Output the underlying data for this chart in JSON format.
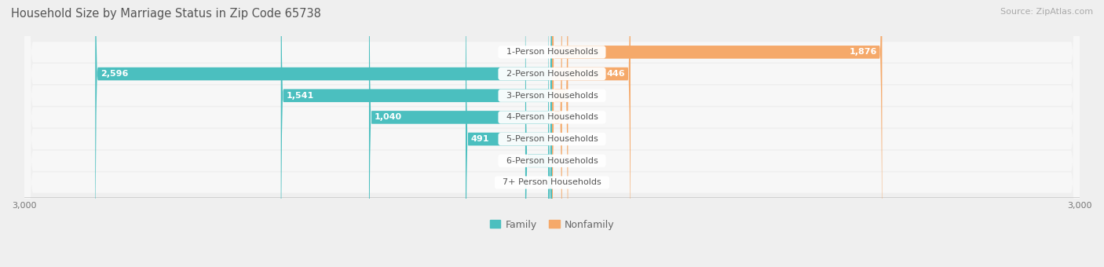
{
  "title": "Household Size by Marriage Status in Zip Code 65738",
  "source": "Source: ZipAtlas.com",
  "categories": [
    "7+ Person Households",
    "6-Person Households",
    "5-Person Households",
    "4-Person Households",
    "3-Person Households",
    "2-Person Households",
    "1-Person Households"
  ],
  "family_values": [
    22,
    152,
    491,
    1040,
    1541,
    2596,
    0
  ],
  "nonfamily_values": [
    0,
    0,
    0,
    57,
    91,
    446,
    1876
  ],
  "family_color": "#4BBFBF",
  "nonfamily_color": "#F5A96A",
  "xlim": 3000,
  "background_color": "#efefef",
  "row_bg_color": "#f7f7f7",
  "title_fontsize": 10.5,
  "source_fontsize": 8,
  "label_fontsize": 8,
  "tick_fontsize": 8,
  "legend_fontsize": 9,
  "inside_threshold": 300
}
